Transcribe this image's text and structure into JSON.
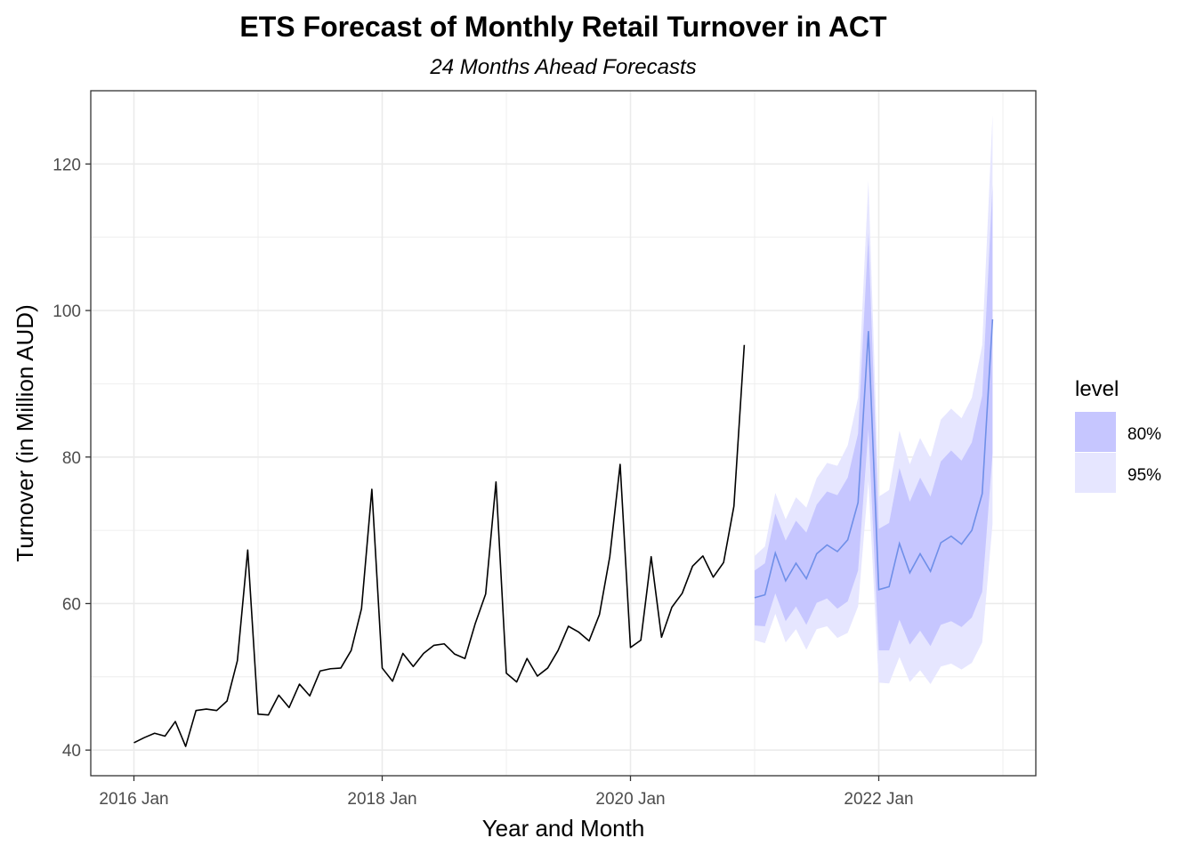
{
  "chart_data": {
    "type": "line",
    "title": "ETS Forecast of Monthly Retail Turnover in ACT",
    "subtitle": "24 Months Ahead Forecasts",
    "xlabel": "Year and Month",
    "ylabel": "Turnover (in Million AUD)",
    "x_start": "2016 Jan",
    "x_ticks": [
      "2016 Jan",
      "2018 Jan",
      "2020 Jan",
      "2022 Jan"
    ],
    "y_ticks": [
      40,
      60,
      80,
      100,
      120
    ],
    "ylim": [
      36.5,
      130
    ],
    "grid": true,
    "legend": {
      "title": "level",
      "placement": "right",
      "entries": [
        "80%",
        "95%"
      ]
    },
    "colors": {
      "band80": "#c6c6ff",
      "band95": "#e6e6ff",
      "forecast_line": "#6f8fe8",
      "history_line": "#000000",
      "grid": "#ebebeb"
    },
    "history": [
      41.0,
      41.7,
      42.3,
      41.9,
      43.9,
      40.5,
      45.4,
      45.6,
      45.4,
      46.7,
      52.2,
      67.3,
      44.9,
      44.8,
      47.5,
      45.8,
      49.0,
      47.4,
      50.8,
      51.1,
      51.2,
      53.6,
      59.3,
      75.6,
      51.2,
      49.4,
      53.2,
      51.4,
      53.2,
      54.3,
      54.5,
      53.1,
      52.5,
      57.3,
      61.3,
      76.6,
      50.5,
      49.3,
      52.5,
      50.1,
      51.2,
      53.6,
      56.9,
      56.1,
      54.9,
      58.5,
      66.4,
      79.0,
      54.0,
      55.0,
      66.4,
      55.4,
      59.5,
      61.4,
      65.1,
      66.5,
      63.6,
      65.6,
      73.3,
      95.3
    ],
    "forecast": {
      "mean": [
        60.8,
        61.2,
        66.9,
        63.1,
        65.5,
        63.4,
        66.8,
        68.0,
        67.1,
        68.7,
        73.8,
        97.2,
        61.9,
        62.3,
        68.2,
        64.2,
        66.8,
        64.4,
        68.3,
        69.2,
        68.1,
        70.0,
        75.0,
        98.8
      ],
      "lo80": [
        57.0,
        56.9,
        61.4,
        57.6,
        59.6,
        57.1,
        60.1,
        60.7,
        59.3,
        60.3,
        64.5,
        83.8,
        53.6,
        53.6,
        57.8,
        54.4,
        56.3,
        54.2,
        57.1,
        57.6,
        56.8,
        58.1,
        61.6,
        80.5
      ],
      "hi80": [
        64.5,
        65.5,
        72.3,
        68.6,
        71.3,
        69.7,
        73.5,
        75.3,
        74.8,
        77.2,
        83.2,
        110.6,
        70.2,
        71.0,
        78.5,
        73.9,
        77.2,
        74.6,
        79.4,
        80.9,
        79.5,
        82.0,
        88.4,
        117.1
      ],
      "lo95": [
        55.0,
        54.6,
        58.6,
        54.7,
        56.5,
        53.7,
        56.5,
        56.9,
        55.3,
        56.0,
        59.6,
        76.7,
        49.2,
        49.1,
        52.7,
        49.3,
        50.9,
        49.0,
        51.4,
        51.8,
        51.0,
        51.9,
        54.7,
        70.9
      ],
      "hi95": [
        66.5,
        67.8,
        75.1,
        71.5,
        74.5,
        73.1,
        77.1,
        79.2,
        78.8,
        81.6,
        88.1,
        117.7,
        74.6,
        75.5,
        83.6,
        79.0,
        82.6,
        79.9,
        85.1,
        86.6,
        85.3,
        88.1,
        95.3,
        126.7
      ]
    }
  }
}
